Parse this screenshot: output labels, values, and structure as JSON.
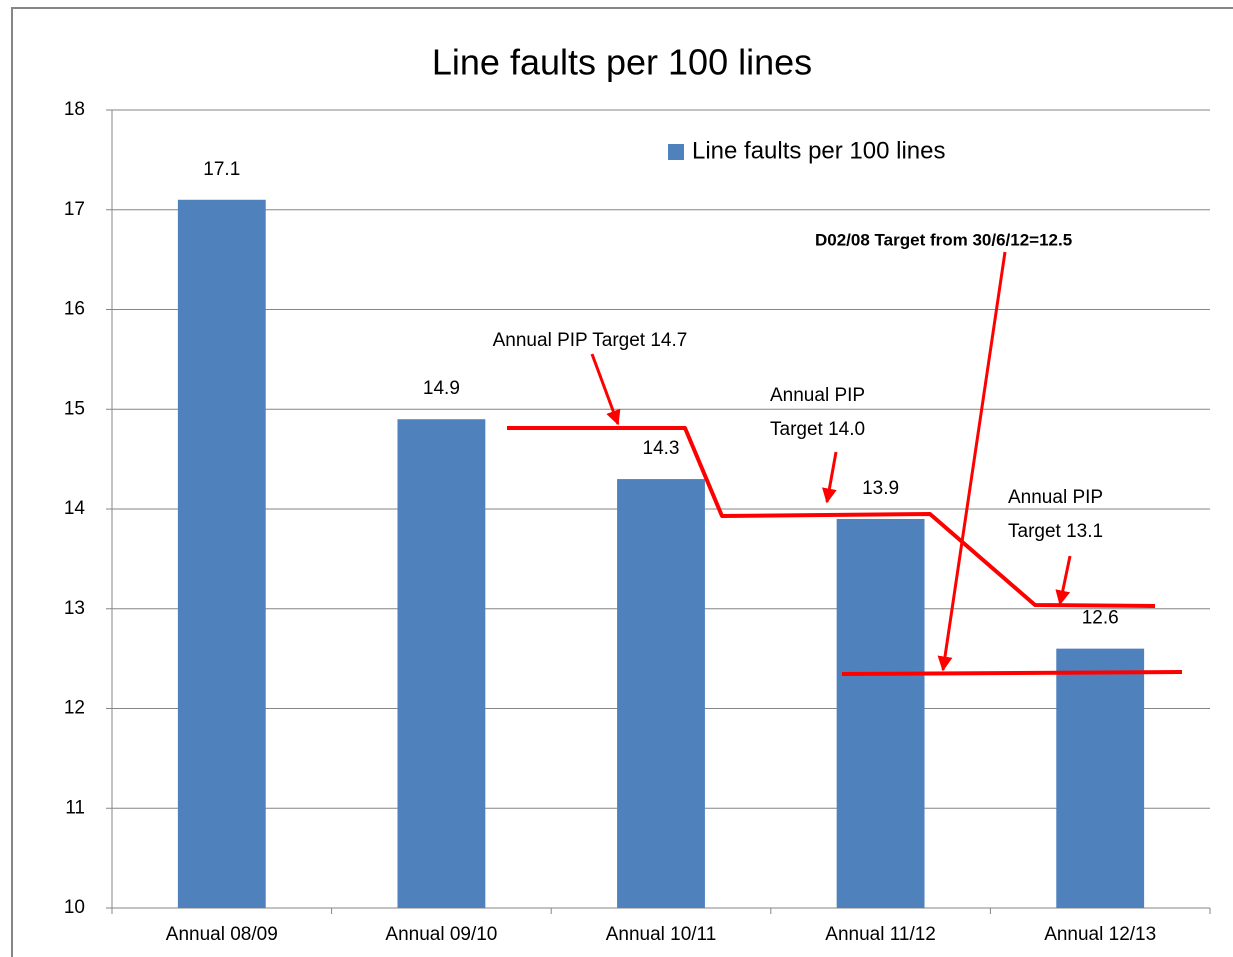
{
  "chart_data": {
    "type": "bar",
    "title": "Line faults per 100 lines",
    "categories": [
      "Annual 08/09",
      "Annual 09/10",
      "Annual 10/11",
      "Annual 11/12",
      "Annual 12/13"
    ],
    "series": [
      {
        "name": "Line faults per 100 lines",
        "color": "#4f81bd",
        "values": [
          17.1,
          14.9,
          14.3,
          13.9,
          12.6
        ]
      }
    ],
    "ylim": [
      10,
      18
    ],
    "yticks": [
      10,
      11,
      12,
      13,
      14,
      15,
      16,
      17,
      18
    ],
    "grid": true,
    "legend": "top-right",
    "annotations": [
      [
        "Annual PIP Target 14.7"
      ],
      [
        "Annual PIP",
        "Target  14.0"
      ],
      [
        "Annual PIP",
        "Target 13.1"
      ],
      [
        "D02/08 Target from 30/6/12=12.5"
      ]
    ]
  }
}
